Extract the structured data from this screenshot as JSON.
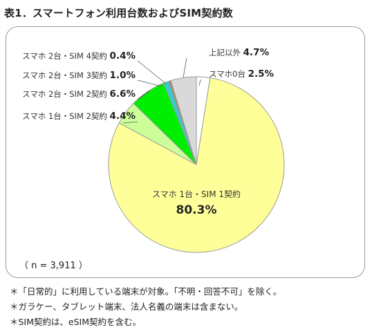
{
  "title": "表1．スマートフォン利用台数およびSIM契約数",
  "sample_note": "（ n = 3,911 ）",
  "footnotes": [
    "＊「日常的」に利用している端末が対象。「不明・回答不可」を除く。",
    "＊ガラケー、タブレット端末、法人名義の端末は含まない。",
    "＊SIM契約は、eSIM契約を含む。"
  ],
  "chart_data": {
    "type": "pie",
    "title": "表1．スマートフォン利用台数およびSIM契約数",
    "start": "12 o'clock, clockwise",
    "slices": [
      {
        "label": "スマホ0台",
        "value": 2.5,
        "value_label": "2.5%",
        "color": "#ffffff"
      },
      {
        "label": "スマホ 1台・SIM 1契約",
        "value": 80.3,
        "value_label": "80.3%",
        "color": "#ffff99"
      },
      {
        "label": "スマホ 1台・SIM 2契約",
        "value": 4.4,
        "value_label": "4.4%",
        "color": "#ccff99"
      },
      {
        "label": "スマホ 2台・SIM 2契約",
        "value": 6.6,
        "value_label": "6.6%",
        "color": "#00ee00"
      },
      {
        "label": "スマホ 2台・SIM 3契約",
        "value": 1.0,
        "value_label": "1.0%",
        "color": "#33cccc"
      },
      {
        "label": "スマホ 2台・SIM 4契約",
        "value": 0.4,
        "value_label": "0.4%",
        "color": "#aa8866"
      },
      {
        "label": "上記以外",
        "value": 4.7,
        "value_label": "4.7%",
        "color": "#d9d9d9"
      }
    ]
  }
}
